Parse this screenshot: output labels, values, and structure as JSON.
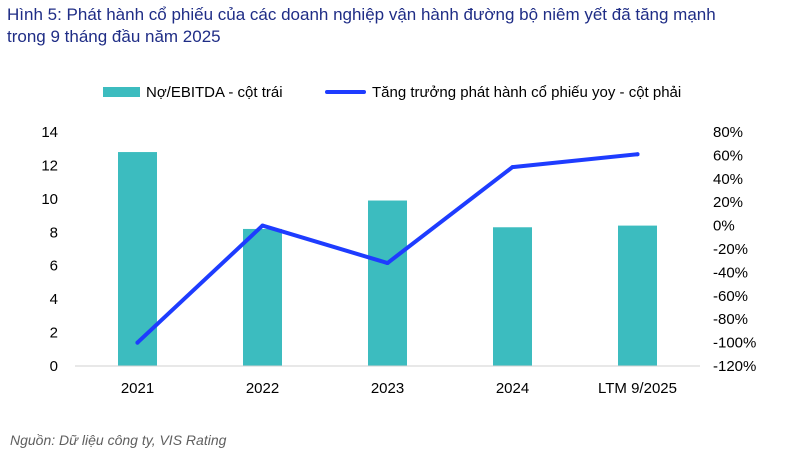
{
  "figure": {
    "title_line1": "Hình 5: Phát hành cổ phiếu của các doanh nghiệp vận hành đường bộ niêm yết đã tăng mạnh",
    "title_line2": "trong 9 tháng đầu năm 2025",
    "source": "Nguồn: Dữ liệu công ty, VIS Rating"
  },
  "colors": {
    "bar": "#3cbcbf",
    "line": "#1e3cff",
    "title": "#1f2d86",
    "axis_text": "#000000",
    "baseline": "#d0d0d0"
  },
  "chart_data": {
    "type": "bar+line",
    "categories": [
      "2021",
      "2022",
      "2023",
      "2024",
      "LTM 9/2025"
    ],
    "series": [
      {
        "name": "Nợ/EBITDA - cột trái",
        "type": "bar",
        "axis": "left",
        "values": [
          12.8,
          8.2,
          9.9,
          8.3,
          8.4
        ]
      },
      {
        "name": "Tăng trưởng phát hành cổ phiếu yoy - cột phải",
        "type": "line",
        "axis": "right",
        "values": [
          -100,
          0,
          -32,
          50,
          61
        ]
      }
    ],
    "y_left": {
      "min": 0,
      "max": 14,
      "ticks": [
        0,
        2,
        4,
        6,
        8,
        10,
        12,
        14
      ],
      "tick_labels": [
        "0",
        "2",
        "4",
        "6",
        "8",
        "10",
        "12",
        "14"
      ]
    },
    "y_right": {
      "min": -120,
      "max": 80,
      "ticks": [
        -120,
        -100,
        -80,
        -60,
        -40,
        -20,
        0,
        20,
        40,
        60,
        80
      ],
      "tick_labels": [
        "-120%",
        "-100%",
        "-80%",
        "-60%",
        "-40%",
        "-20%",
        "0%",
        "20%",
        "40%",
        "60%",
        "80%"
      ]
    },
    "legend_position": "top",
    "grid": false
  }
}
